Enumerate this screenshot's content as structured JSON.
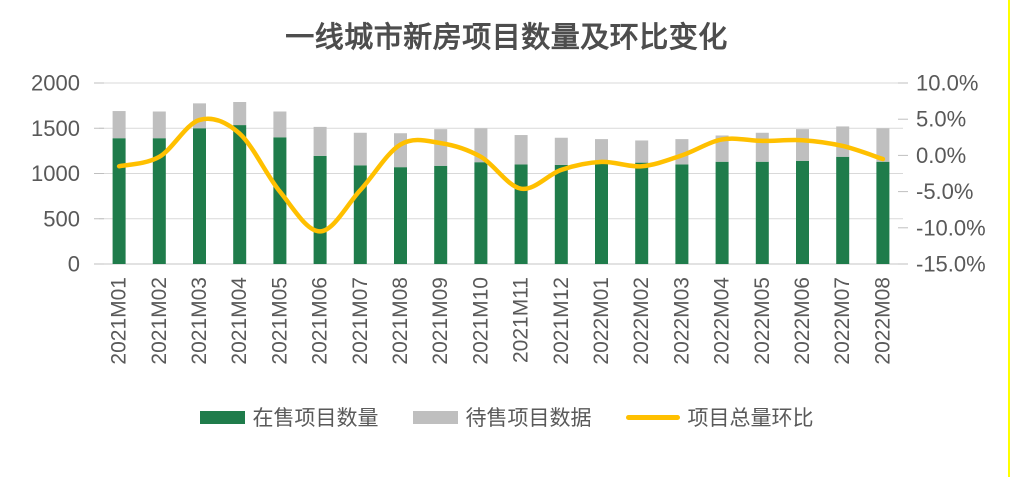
{
  "title": "一线城市新房项目数量及环比变化",
  "colors": {
    "on_sale_bar": "#1F7C4B",
    "pre_sale_bar": "#BFBFBF",
    "mom_line": "#FFC000",
    "grid": "#D9D9D9",
    "axis_line": "#C6C6C6",
    "tick_mark": "#BFBFBF",
    "text": "#595959",
    "title_text": "#4D4D4D",
    "edge_highlight": "#FFFF00",
    "background": "#FFFFFF"
  },
  "chart_data": {
    "type": "bar",
    "subtype": "stacked-bar-with-smooth-line-combo",
    "title": "一线城市新房项目数量及环比变化",
    "categories": [
      "2021M01",
      "2021M02",
      "2021M03",
      "2021M04",
      "2021M05",
      "2021M06",
      "2021M07",
      "2021M08",
      "2021M09",
      "2021M10",
      "2021M11",
      "2021M12",
      "2022M01",
      "2022M02",
      "2022M03",
      "2022M04",
      "2022M05",
      "2022M06",
      "2022M07",
      "2022M08"
    ],
    "series": [
      {
        "name": "在售项目数量",
        "type": "bar",
        "stack": "projects",
        "axis": "left",
        "values": [
          1390,
          1390,
          1500,
          1535,
          1400,
          1195,
          1090,
          1070,
          1085,
          1125,
          1100,
          1095,
          1115,
          1120,
          1100,
          1130,
          1130,
          1140,
          1185,
          1130
        ]
      },
      {
        "name": "待售项目数据",
        "type": "bar",
        "stack": "projects",
        "axis": "left",
        "values": [
          300,
          295,
          275,
          255,
          285,
          320,
          360,
          375,
          405,
          375,
          325,
          300,
          265,
          245,
          280,
          290,
          320,
          350,
          335,
          370
        ]
      },
      {
        "name": "项目总量环比",
        "type": "line",
        "smooth": true,
        "axis": "right",
        "unit": "%",
        "values": [
          -1.5,
          -0.2,
          4.9,
          3.0,
          -5.0,
          -10.5,
          -4.8,
          1.5,
          1.7,
          -0.2,
          -4.6,
          -2.0,
          -0.9,
          -1.5,
          0.0,
          2.2,
          2.0,
          2.1,
          1.3,
          -0.5
        ]
      }
    ],
    "left_axis": {
      "min": 0,
      "max": 2000,
      "ticks": [
        "2000",
        "1500",
        "1000",
        "500",
        "0"
      ]
    },
    "right_axis": {
      "min": -15,
      "max": 10,
      "ticks": [
        "10.0%",
        "5.0%",
        "0.0%",
        "-5.0%",
        "-10.0%",
        "-15.0%"
      ]
    },
    "grid": true,
    "legend_position": "bottom",
    "x_label_rotation": -90
  }
}
